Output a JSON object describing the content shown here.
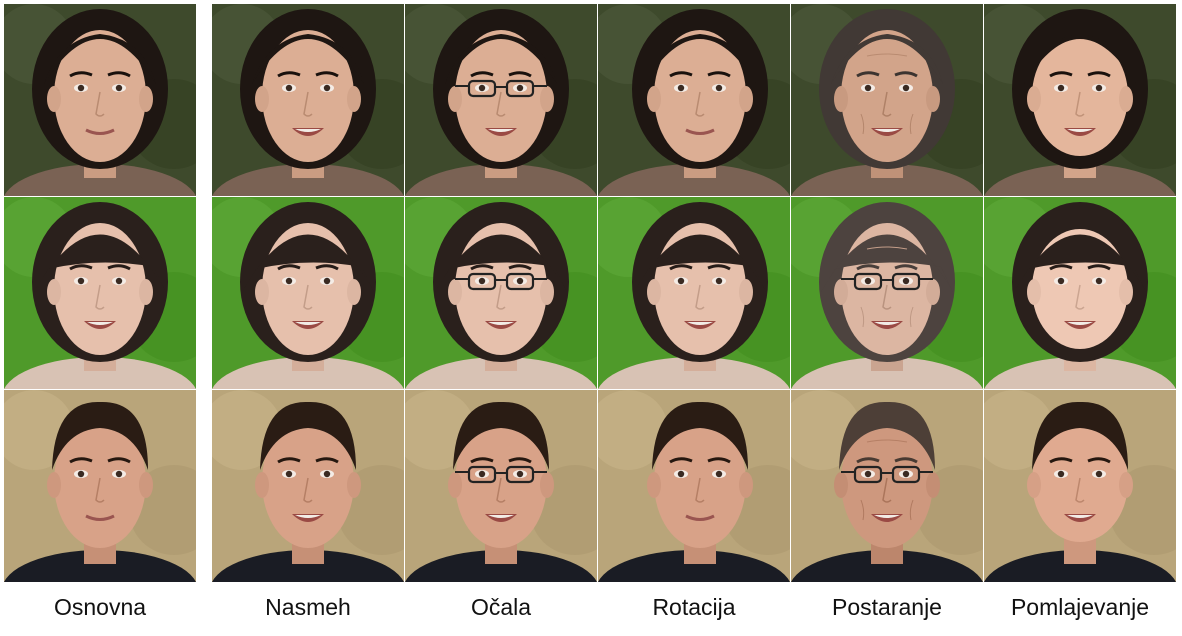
{
  "captions": {
    "original": "Osnovna",
    "smile": "Nasmeh",
    "glasses": "Očala",
    "rotation": "Rotacija",
    "aging": "Postaranje",
    "rejuvenation": "Pomlajevanje"
  },
  "rows": [
    {
      "subject": "woman-dark-hair",
      "background": "#3e4a2c",
      "skin": "#dcae94",
      "hair": "#1e1612",
      "shirt": "#7a6254",
      "variants": [
        "original",
        "smile",
        "glasses",
        "rotation",
        "aging",
        "rejuvenation"
      ]
    },
    {
      "subject": "woman-bangs",
      "background": "#4f9a2a",
      "skin": "#e6c0ac",
      "hair": "#2a201c",
      "shirt": "#d8c2b4",
      "variants": [
        "original",
        "smile",
        "glasses",
        "rotation",
        "aging",
        "rejuvenation"
      ]
    },
    {
      "subject": "man-short-hair",
      "background": "#b9a57a",
      "skin": "#d8a288",
      "hair": "#2a1c14",
      "shirt": "#1a1c24",
      "variants": [
        "original",
        "smile",
        "glasses",
        "rotation",
        "aging",
        "rejuvenation"
      ]
    }
  ]
}
